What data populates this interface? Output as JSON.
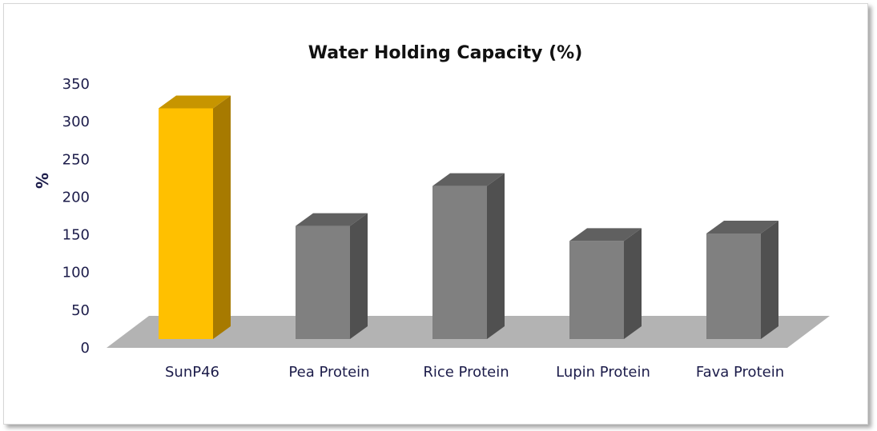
{
  "chart_data": {
    "type": "bar",
    "title": "Water Holding Capacity (%)",
    "ylabel": "%",
    "xlabel": "",
    "categories": [
      "SunP46",
      "Pea Protein",
      "Rice Protein",
      "Lupin Protein",
      "Fava Protein"
    ],
    "values": [
      306,
      150,
      203,
      130,
      140
    ],
    "ylim": [
      0,
      350
    ],
    "yticks": [
      0,
      50,
      100,
      150,
      200,
      250,
      300,
      350
    ],
    "grid": false,
    "legend": "none",
    "colors": {
      "highlight_front": "#ffc000",
      "highlight_top": "#c79500",
      "highlight_side": "#a77a00",
      "bar_front": "#808080",
      "bar_top": "#606060",
      "bar_side": "#505050",
      "floor": "#b3b3b3",
      "text": "#1c1c4a"
    }
  }
}
